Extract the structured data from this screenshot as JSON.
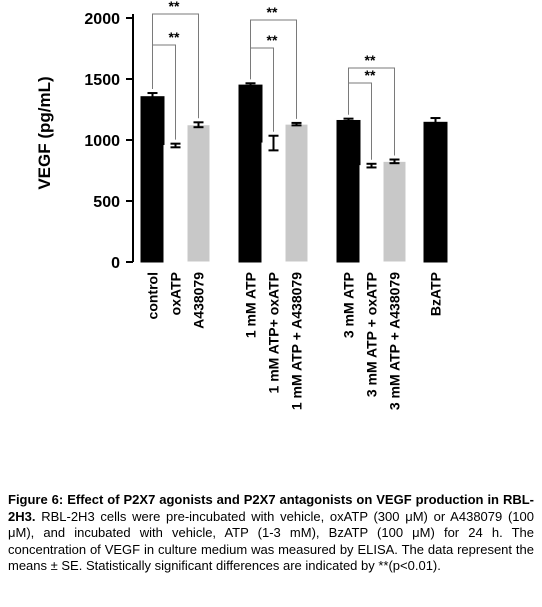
{
  "chart_data": {
    "type": "bar",
    "ylabel": "VEGF (pg/mL)",
    "ylim": [
      0,
      2000
    ],
    "yticks": [
      0,
      500,
      1000,
      1500,
      2000
    ],
    "grid": false,
    "legend": "none",
    "categories": [
      "control",
      "oxATP",
      "A438079",
      "1 mM ATP",
      "1 mM ATP+ oxATP",
      "1 mM ATP + A438079",
      "3 mM ATP",
      "3 mM ATP + oxATP",
      "3 mM ATP + A438079",
      "BzATP"
    ],
    "groups": [
      [
        0,
        1,
        2
      ],
      [
        3,
        4,
        5
      ],
      [
        6,
        7,
        8
      ],
      [
        9
      ]
    ],
    "values": [
      1355,
      955,
      1125,
      1450,
      975,
      1130,
      1160,
      790,
      825,
      1145
    ],
    "errors": [
      30,
      15,
      20,
      15,
      60,
      10,
      15,
      15,
      15,
      35
    ],
    "fills": [
      "black",
      "white",
      "gray",
      "black",
      "white",
      "gray",
      "black",
      "white",
      "gray",
      "black"
    ],
    "colors": {
      "black": "#000000",
      "white": "#ffffff",
      "gray": "#c8c8c8"
    },
    "significance": [
      {
        "from": 0,
        "to": 1,
        "label": "**"
      },
      {
        "from": 0,
        "to": 2,
        "label": "**"
      },
      {
        "from": 3,
        "to": 4,
        "label": "**"
      },
      {
        "from": 3,
        "to": 5,
        "label": "**"
      },
      {
        "from": 6,
        "to": 7,
        "label": "**"
      },
      {
        "from": 6,
        "to": 8,
        "label": "**"
      }
    ]
  },
  "caption": {
    "label": "Figure 6: Effect of P2X7 agonists and P2X7 antagonists on VEGF production in RBL-2H3.",
    "text": "RBL-2H3 cells were pre-incubated with vehicle, oxATP (300 μM) or A438079 (100 μM), and incubated with vehicle, ATP (1-3 mM), BzATP (100 μM) for 24 h. The concentration of VEGF in culture medium was measured by ELISA. The data represent the means ± SE. Statistically significant differences are indicated by **(p<0.01)."
  }
}
